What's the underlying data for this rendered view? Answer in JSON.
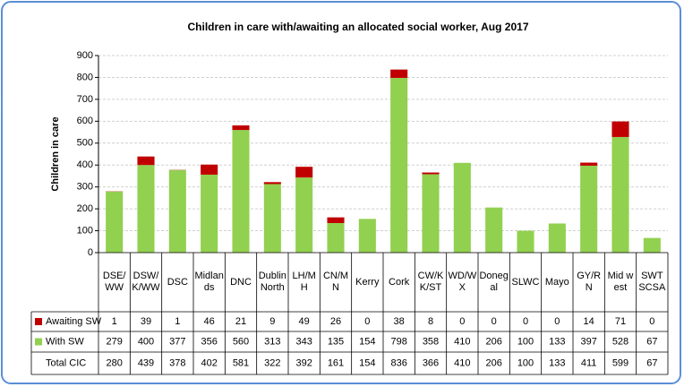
{
  "chart_data": {
    "type": "stacked_bar",
    "title": "Children in care with/awaiting an allocated social worker,  Aug 2017",
    "y_label": "Children in care",
    "categories": [
      "DSE/WW",
      "DSW/K/WW",
      "DSC",
      "Midlands",
      "DNC",
      "Dublin North",
      "LH/MH",
      "CN/MN",
      "Kerry",
      "Cork",
      "CW/KK/ST",
      "WD/WX",
      "Donegal",
      "SLWC",
      "Mayo",
      "GY/RN",
      "Mid west",
      "SWT SCSA"
    ],
    "series": [
      {
        "name": "Awaiting SW",
        "color": "#c00000",
        "values": [
          1,
          39,
          1,
          46,
          21,
          9,
          49,
          26,
          0,
          38,
          8,
          0,
          0,
          0,
          0,
          14,
          71,
          0
        ]
      },
      {
        "name": "With SW",
        "color": "#92d050",
        "values": [
          279,
          400,
          377,
          356,
          560,
          313,
          343,
          135,
          154,
          798,
          358,
          410,
          206,
          100,
          133,
          397,
          528,
          67
        ]
      }
    ],
    "totals": {
      "name": "Total CIC",
      "values": [
        280,
        439,
        378,
        402,
        581,
        322,
        392,
        161,
        154,
        836,
        366,
        410,
        206,
        100,
        133,
        411,
        599,
        67
      ]
    },
    "ylim": [
      0,
      900
    ],
    "yticks": [
      0,
      100,
      200,
      300,
      400,
      500,
      600,
      700,
      800,
      900
    ],
    "grid": true
  }
}
